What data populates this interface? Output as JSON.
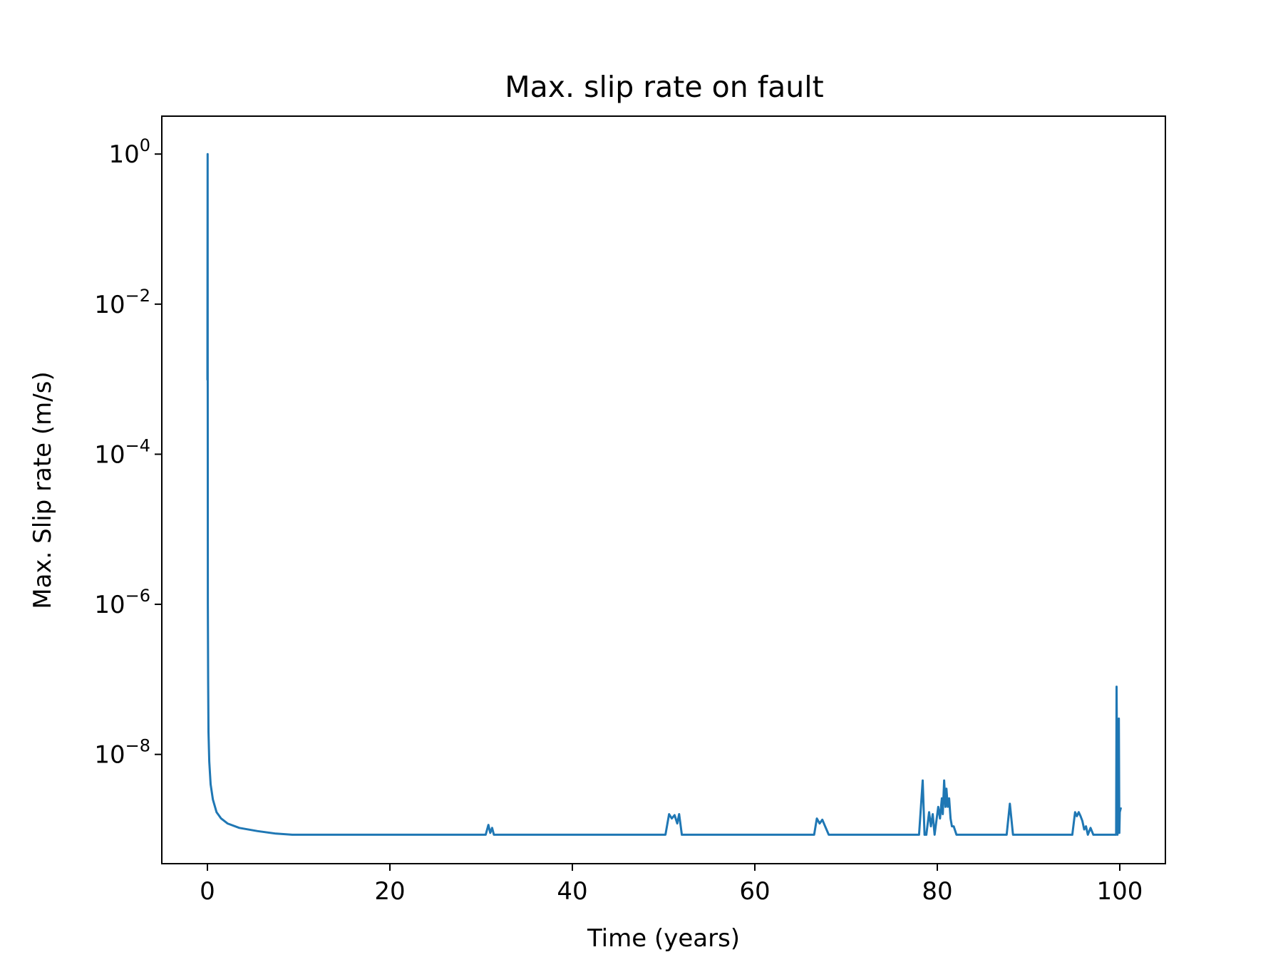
{
  "chart_data": {
    "type": "line",
    "title": "Max. slip rate on fault",
    "xlabel": "Time (years)",
    "ylabel": "Max. Slip rate (m/s)",
    "yscale": "log",
    "xlim": [
      -5,
      105
    ],
    "ylim": [
      3.5e-10,
      3.2
    ],
    "xticks": [
      0,
      20,
      40,
      60,
      80,
      100
    ],
    "xtick_labels": [
      "0",
      "20",
      "40",
      "60",
      "80",
      "100"
    ],
    "yticks": [
      1,
      0.01,
      0.0001,
      1e-06,
      1e-08
    ],
    "ytick_labels": [
      {
        "base": "10",
        "exp": "0"
      },
      {
        "base": "10",
        "exp": "−2"
      },
      {
        "base": "10",
        "exp": "−4"
      },
      {
        "base": "10",
        "exp": "−6"
      },
      {
        "base": "10",
        "exp": "−8"
      }
    ],
    "grid": false,
    "legend": "none",
    "series": [
      {
        "color": "#1f77b4",
        "x": [
          0,
          0.02,
          0.03,
          0.05,
          0.08,
          0.12,
          0.2,
          0.35,
          0.6,
          1.0,
          1.5,
          2.2,
          3.5,
          5.5,
          7.5,
          9.3,
          30.5,
          30.8,
          31.0,
          31.2,
          31.4,
          31.6,
          31.8,
          32.0,
          50.2,
          50.6,
          50.9,
          51.2,
          51.5,
          51.7,
          52.0,
          52.2,
          66.5,
          66.8,
          67.1,
          67.4,
          67.7,
          68.1,
          68.4,
          78.0,
          78.4,
          78.6,
          78.8,
          79.1,
          79.3,
          79.5,
          79.7,
          79.9,
          80.1,
          80.3,
          80.5,
          80.6,
          80.75,
          80.9,
          81.0,
          81.15,
          81.3,
          81.45,
          81.6,
          81.8,
          82.1,
          82.4,
          87.6,
          87.95,
          88.3,
          94.8,
          95.1,
          95.3,
          95.5,
          95.7,
          95.9,
          96.1,
          96.3,
          96.5,
          96.8,
          97.1,
          99.3,
          99.6,
          99.65,
          99.75,
          99.9,
          99.95,
          100.0,
          100.1
        ],
        "y": [
          0.001,
          1.0,
          0.002,
          1e-06,
          1e-07,
          2e-08,
          8e-09,
          4e-09,
          2.5e-09,
          1.7e-09,
          1.4e-09,
          1.2e-09,
          1.05e-09,
          9.5e-10,
          8.8e-10,
          8.5e-10,
          8.5e-10,
          1.15e-09,
          9e-10,
          1.05e-09,
          8.5e-10,
          8.5e-10,
          8.5e-10,
          8.5e-10,
          8.5e-10,
          1.6e-09,
          1.4e-09,
          1.55e-09,
          1.2e-09,
          1.6e-09,
          8.5e-10,
          8.5e-10,
          8.5e-10,
          1.4e-09,
          1.2e-09,
          1.35e-09,
          1.1e-09,
          8.5e-10,
          8.5e-10,
          8.5e-10,
          4.5e-09,
          8.5e-10,
          8.5e-10,
          1.7e-09,
          1.1e-09,
          1.6e-09,
          8.5e-10,
          1.3e-09,
          2e-09,
          1.4e-09,
          2.6e-09,
          1.6e-09,
          4.5e-09,
          2e-09,
          3.5e-09,
          2e-09,
          2.6e-09,
          1.4e-09,
          1.1e-09,
          1.1e-09,
          8.5e-10,
          8.5e-10,
          8.5e-10,
          2.2e-09,
          8.5e-10,
          8.5e-10,
          1.7e-09,
          1.5e-09,
          1.7e-09,
          1.5e-09,
          1.3e-09,
          1e-09,
          1.1e-09,
          8.5e-10,
          1.05e-09,
          8.5e-10,
          8.5e-10,
          8.5e-10,
          8e-08,
          8.5e-10,
          3e-08,
          9e-10,
          1.7e-09,
          1.9e-09
        ]
      }
    ]
  }
}
